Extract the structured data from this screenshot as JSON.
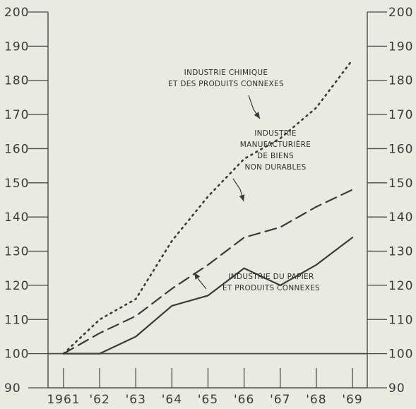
{
  "chart_data": {
    "type": "line",
    "title": "",
    "xlabel": "",
    "ylabel": "",
    "categories": [
      "1961",
      "'62",
      "'63",
      "'64",
      "'65",
      "'66",
      "'67",
      "'68",
      "'69"
    ],
    "yticks": [
      "90",
      "100",
      "110",
      "120",
      "130",
      "140",
      "150",
      "160",
      "170",
      "180",
      "190",
      "200"
    ],
    "ylim": [
      90,
      200
    ],
    "reference_line": 100,
    "grid": false,
    "series": [
      {
        "key": "chimique",
        "style": "dotted",
        "label_lines": [
          "INDUSTRIE CHIMIQUE",
          "ET DES PRODUITS CONNEXES"
        ],
        "values": [
          100,
          110,
          116,
          133,
          146,
          157,
          163,
          172,
          186
        ]
      },
      {
        "key": "non_durables",
        "style": "dashed",
        "label_lines": [
          "INDUSTRIE",
          "MANUFACTURIÈRE",
          "DE BIENS",
          "NON DURABLES"
        ],
        "values": [
          100,
          106,
          111,
          119,
          126,
          134,
          137,
          143,
          148
        ]
      },
      {
        "key": "papier",
        "style": "solid",
        "label_lines": [
          "INDUSTRIE DU PAPIER",
          "ET PRODUITS CONNEXES"
        ],
        "values": [
          100,
          100,
          105,
          114,
          117,
          125,
          120,
          126,
          134
        ]
      }
    ],
    "colors": {
      "line": "#3b3b3b",
      "axis": "#4a4a4a",
      "background": "#e9ebe1"
    }
  }
}
